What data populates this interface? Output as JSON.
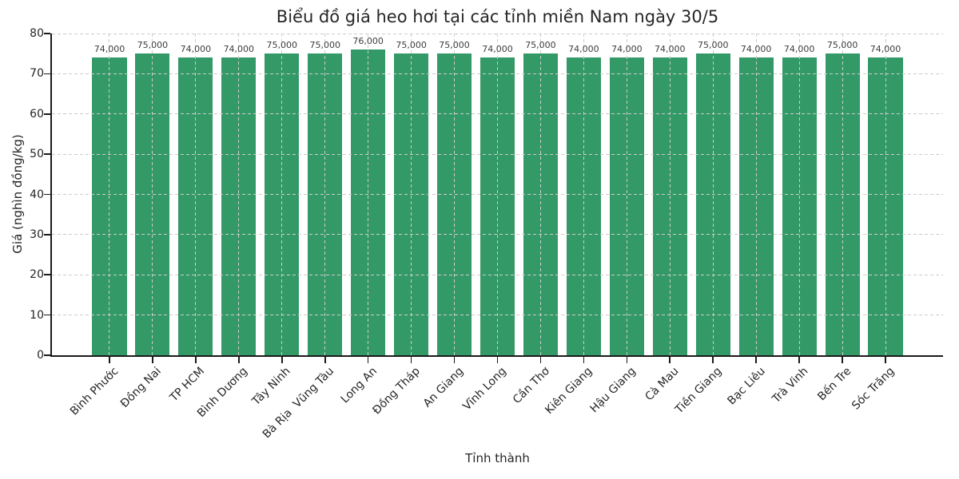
{
  "chart_data": {
    "type": "bar",
    "title": "Biểu đồ giá heo hơi tại các tỉnh miền Nam ngày 30/5",
    "xlabel": "Tỉnh thành",
    "ylabel": "Giá (nghìn đồng/kg)",
    "categories": [
      "Bình Phước",
      "Đồng Nai",
      "TP HCM",
      "Bình Dương",
      "Tây Ninh",
      "Bà Rịa  Vũng Tàu",
      "Long An",
      "Đồng Tháp",
      "An Giang",
      "Vĩnh Long",
      "Cần Thơ",
      "Kiên Giang",
      "Hậu Giang",
      "Cà Mau",
      "Tiền Giang",
      "Bạc Liêu",
      "Trà Vinh",
      "Bến Tre",
      "Sóc Trăng"
    ],
    "values": [
      74,
      75,
      74,
      74,
      75,
      75,
      76,
      75,
      75,
      74,
      75,
      74,
      74,
      74,
      75,
      74,
      74,
      75,
      74
    ],
    "bar_labels": [
      "74,000",
      "75,000",
      "74,000",
      "74,000",
      "75,000",
      "75,000",
      "76,000",
      "75,000",
      "75,000",
      "74,000",
      "75,000",
      "74,000",
      "74,000",
      "74,000",
      "75,000",
      "74,000",
      "74,000",
      "75,000",
      "74,000"
    ],
    "unit": "nghìn đồng/kg",
    "ylim": [
      0,
      80
    ],
    "yticks": [
      0,
      10,
      20,
      30,
      40,
      50,
      60,
      70,
      80
    ],
    "x_tick_rotation_deg": 45,
    "grid": "dashed horizontal and vertical gridlines drawn over bars",
    "legend_position": "none"
  },
  "style": {
    "bar_color": "#339966",
    "grid_color": "#cccccc",
    "axis_color": "#1a1a1a",
    "text_color": "#262626",
    "value_label_color": "#3d3d3d",
    "background": "#ffffff"
  }
}
